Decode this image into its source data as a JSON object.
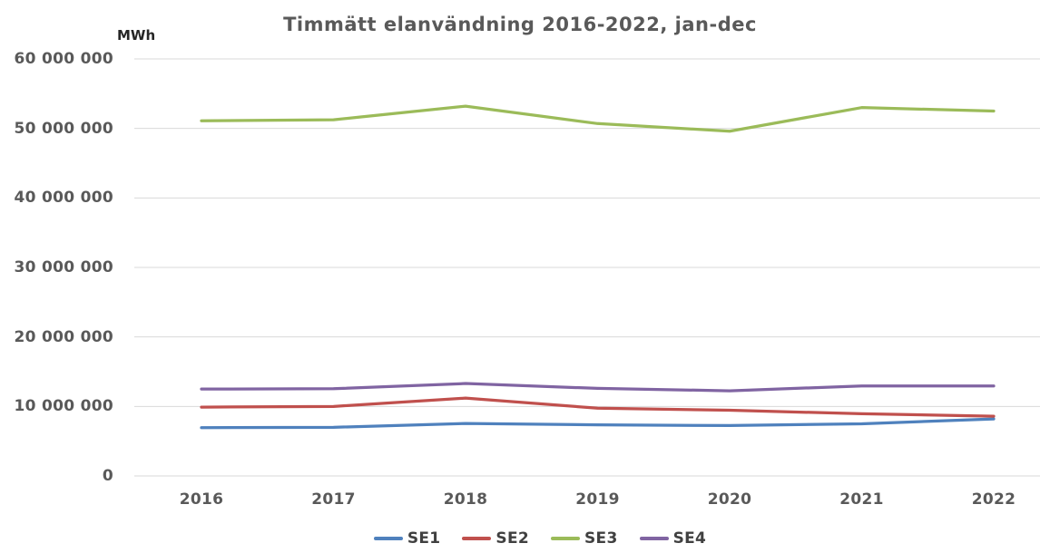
{
  "chart": {
    "title": "Timmätt elanvändning 2016-2022, jan-dec",
    "unit_label": "MWh"
  },
  "colors": {
    "se1_blue": "#4F81BD",
    "se2_red": "#C0504D",
    "se3_green": "#9BBB59",
    "se4_purple": "#8064A2",
    "gridline": "#D9D9D9",
    "axis_text": "#595959",
    "title_text": "#595959"
  },
  "chart_data": {
    "type": "line",
    "title": "Timmätt elanvändning 2016-2022, jan-dec",
    "ylabel": "MWh",
    "xlabel": "",
    "categories": [
      "2016",
      "2017",
      "2018",
      "2019",
      "2020",
      "2021",
      "2022"
    ],
    "series": [
      {
        "name": "SE1",
        "color": "#4F81BD",
        "values": [
          6950000,
          7000000,
          7550000,
          7350000,
          7250000,
          7500000,
          8200000
        ]
      },
      {
        "name": "SE2",
        "color": "#C0504D",
        "values": [
          9900000,
          10000000,
          11200000,
          9750000,
          9450000,
          8950000,
          8600000
        ]
      },
      {
        "name": "SE3",
        "color": "#9BBB59",
        "values": [
          51100000,
          51250000,
          53200000,
          50700000,
          49600000,
          53000000,
          52500000
        ]
      },
      {
        "name": "SE4",
        "color": "#8064A2",
        "values": [
          12500000,
          12550000,
          13300000,
          12600000,
          12250000,
          12950000,
          12950000
        ]
      }
    ],
    "ylim": [
      0,
      60000000
    ],
    "y_ticks": [
      {
        "value": 0,
        "label": "0"
      },
      {
        "value": 10000000,
        "label": "10 000 000"
      },
      {
        "value": 20000000,
        "label": "20 000 000"
      },
      {
        "value": 30000000,
        "label": "30 000 000"
      },
      {
        "value": 40000000,
        "label": "40 000 000"
      },
      {
        "value": 50000000,
        "label": "50 000 000"
      },
      {
        "value": 60000000,
        "label": "60 000 000"
      }
    ],
    "grid": true,
    "legend_position": "bottom"
  }
}
